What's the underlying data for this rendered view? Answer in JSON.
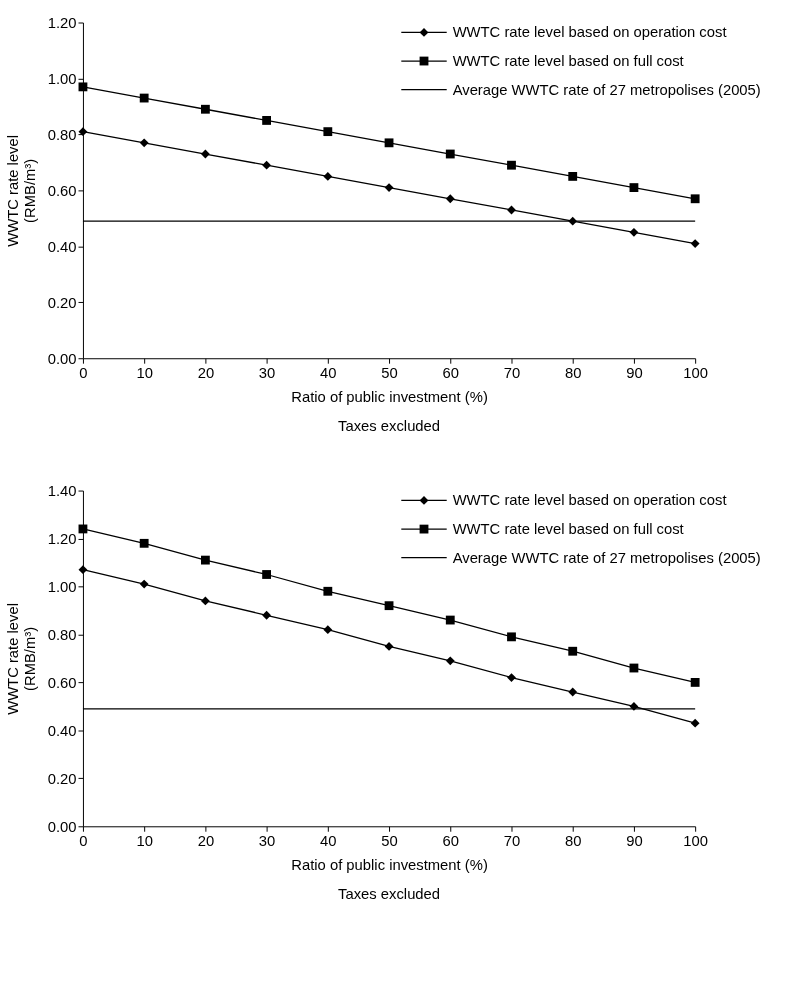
{
  "chart_data": [
    {
      "type": "line",
      "xlabel": "Ratio of public investment (%)",
      "ylabel": "WWTC rate level (RMB/m³)",
      "annotations": [
        "Taxes excluded"
      ],
      "x": [
        0,
        10,
        20,
        30,
        40,
        50,
        60,
        70,
        80,
        90,
        100
      ],
      "series": [
        {
          "name": "WWTC rate level based on operation cost",
          "color": "#000000",
          "marker": "diamond",
          "values": [
            0.81,
            0.77,
            0.73,
            0.69,
            0.65,
            0.61,
            0.57,
            0.53,
            0.49,
            0.45,
            0.41
          ]
        },
        {
          "name": "WWTC rate level based on full cost",
          "color": "#000000",
          "marker": "square",
          "values": [
            0.97,
            0.93,
            0.89,
            0.85,
            0.81,
            0.77,
            0.73,
            0.69,
            0.65,
            0.61,
            0.57
          ]
        }
      ],
      "ref_lines": [
        {
          "axis": "y",
          "value": 0.49,
          "label": "Average WWTC rate of 27 metropolises (2005)",
          "color": "#000000"
        }
      ],
      "xlim": [
        0,
        100
      ],
      "xticks": [
        0,
        10,
        20,
        30,
        40,
        50,
        60,
        70,
        80,
        90,
        100
      ],
      "ylim": [
        0,
        1.2
      ],
      "yticks": [
        {
          "value": 0,
          "label": "0.00"
        },
        {
          "value": 0.2,
          "label": "0.20"
        },
        {
          "value": 0.4,
          "label": "0.40"
        },
        {
          "value": 0.6,
          "label": "0.60"
        },
        {
          "value": 0.8,
          "label": "0.80"
        },
        {
          "value": 1.0,
          "label": "1.00"
        },
        {
          "value": 1.2,
          "label": "1.20"
        }
      ],
      "grid": false,
      "legend": "top right"
    },
    {
      "type": "line",
      "xlabel": "Ratio of public investment (%)",
      "ylabel": "WWTC rate level (RMB/m³)",
      "annotations": [
        "Taxes excluded"
      ],
      "x": [
        0,
        10,
        20,
        30,
        40,
        50,
        60,
        70,
        80,
        90,
        100
      ],
      "series": [
        {
          "name": "WWTC rate level based on operation cost",
          "color": "#000000",
          "marker": "diamond",
          "values": [
            1.07,
            1.01,
            0.94,
            0.88,
            0.82,
            0.75,
            0.69,
            0.62,
            0.56,
            0.5,
            0.43
          ]
        },
        {
          "name": "WWTC rate level based on full cost",
          "color": "#000000",
          "marker": "square",
          "values": [
            1.24,
            1.18,
            1.11,
            1.05,
            0.98,
            0.92,
            0.86,
            0.79,
            0.73,
            0.66,
            0.6
          ]
        }
      ],
      "ref_lines": [
        {
          "axis": "y",
          "value": 0.49,
          "label": "Average WWTC rate of 27 metropolises (2005)",
          "color": "#000000"
        }
      ],
      "xlim": [
        0,
        100
      ],
      "xticks": [
        0,
        10,
        20,
        30,
        40,
        50,
        60,
        70,
        80,
        90,
        100
      ],
      "ylim": [
        0,
        1.4
      ],
      "yticks": [
        {
          "value": 0,
          "label": "0.00"
        },
        {
          "value": 0.2,
          "label": "0.20"
        },
        {
          "value": 0.4,
          "label": "0.40"
        },
        {
          "value": 0.6,
          "label": "0.60"
        },
        {
          "value": 0.8,
          "label": "0.80"
        },
        {
          "value": 1.0,
          "label": "1.00"
        },
        {
          "value": 1.2,
          "label": "1.20"
        },
        {
          "value": 1.4,
          "label": "1.40"
        }
      ],
      "grid": false,
      "legend": "top right"
    }
  ]
}
